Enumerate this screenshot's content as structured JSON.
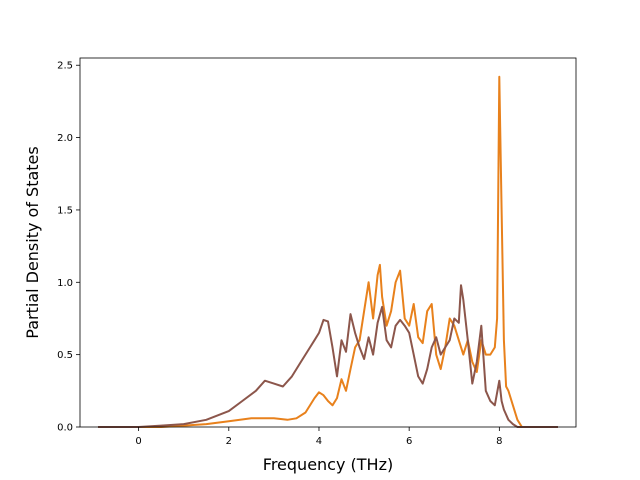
{
  "chart_data": {
    "type": "line",
    "title": "",
    "xlabel": "Frequency (THz)",
    "ylabel": "Partial Density of States",
    "xlim": [
      -1.3,
      9.7
    ],
    "ylim": [
      0.0,
      2.55
    ],
    "xticks": [
      0,
      2,
      4,
      6,
      8
    ],
    "yticks": [
      0.0,
      0.5,
      1.0,
      1.5,
      2.0,
      2.5
    ],
    "xtick_labels": [
      "0",
      "2",
      "4",
      "6",
      "8"
    ],
    "ytick_labels": [
      "0.0",
      "0.5",
      "1.0",
      "1.5",
      "2.0",
      "2.5"
    ],
    "grid": false,
    "legend": "none",
    "series": [
      {
        "color": "#e8811c",
        "x": [
          -0.9,
          0,
          0.5,
          1.0,
          1.5,
          2.0,
          2.5,
          3.0,
          3.3,
          3.5,
          3.7,
          3.9,
          4.0,
          4.1,
          4.2,
          4.3,
          4.4,
          4.5,
          4.6,
          4.7,
          4.8,
          4.9,
          5.0,
          5.1,
          5.2,
          5.3,
          5.35,
          5.4,
          5.5,
          5.6,
          5.7,
          5.8,
          5.9,
          6.0,
          6.1,
          6.2,
          6.3,
          6.4,
          6.5,
          6.6,
          6.7,
          6.8,
          6.9,
          7.0,
          7.1,
          7.2,
          7.3,
          7.4,
          7.5,
          7.6,
          7.7,
          7.8,
          7.9,
          7.95,
          8.0,
          8.05,
          8.1,
          8.15,
          8.2,
          8.3,
          8.4,
          8.5,
          8.7,
          9.0,
          9.3
        ],
        "y": [
          0.0,
          0.0,
          0.0,
          0.01,
          0.02,
          0.04,
          0.06,
          0.06,
          0.05,
          0.06,
          0.1,
          0.2,
          0.24,
          0.22,
          0.18,
          0.15,
          0.2,
          0.33,
          0.25,
          0.4,
          0.55,
          0.6,
          0.8,
          1.0,
          0.75,
          1.05,
          1.12,
          0.9,
          0.7,
          0.8,
          1.0,
          1.08,
          0.75,
          0.7,
          0.85,
          0.62,
          0.58,
          0.8,
          0.85,
          0.5,
          0.4,
          0.55,
          0.75,
          0.7,
          0.6,
          0.5,
          0.6,
          0.45,
          0.38,
          0.6,
          0.5,
          0.5,
          0.55,
          0.75,
          2.42,
          1.5,
          0.6,
          0.28,
          0.25,
          0.15,
          0.05,
          0.0,
          0.0,
          0.0,
          0.0
        ]
      },
      {
        "color": "#8c564b",
        "x": [
          -0.9,
          0,
          0.5,
          1.0,
          1.5,
          2.0,
          2.3,
          2.6,
          2.8,
          3.0,
          3.2,
          3.4,
          3.6,
          3.8,
          3.9,
          4.0,
          4.1,
          4.2,
          4.3,
          4.4,
          4.5,
          4.6,
          4.7,
          4.8,
          4.9,
          5.0,
          5.1,
          5.2,
          5.3,
          5.4,
          5.5,
          5.6,
          5.7,
          5.8,
          5.9,
          6.0,
          6.1,
          6.2,
          6.3,
          6.4,
          6.5,
          6.6,
          6.7,
          6.8,
          6.9,
          7.0,
          7.1,
          7.15,
          7.2,
          7.3,
          7.4,
          7.5,
          7.6,
          7.7,
          7.8,
          7.9,
          8.0,
          8.05,
          8.1,
          8.2,
          8.3,
          8.4,
          8.6,
          9.0,
          9.3
        ],
        "y": [
          0.0,
          0.0,
          0.01,
          0.02,
          0.05,
          0.11,
          0.18,
          0.25,
          0.32,
          0.3,
          0.28,
          0.35,
          0.45,
          0.55,
          0.6,
          0.65,
          0.74,
          0.73,
          0.55,
          0.35,
          0.6,
          0.52,
          0.78,
          0.65,
          0.55,
          0.47,
          0.62,
          0.5,
          0.72,
          0.83,
          0.6,
          0.55,
          0.7,
          0.74,
          0.7,
          0.65,
          0.5,
          0.35,
          0.3,
          0.4,
          0.55,
          0.62,
          0.5,
          0.55,
          0.6,
          0.75,
          0.72,
          0.98,
          0.88,
          0.6,
          0.3,
          0.45,
          0.7,
          0.25,
          0.18,
          0.15,
          0.32,
          0.18,
          0.12,
          0.05,
          0.02,
          0.0,
          0.0,
          0.0,
          0.0
        ]
      }
    ]
  }
}
